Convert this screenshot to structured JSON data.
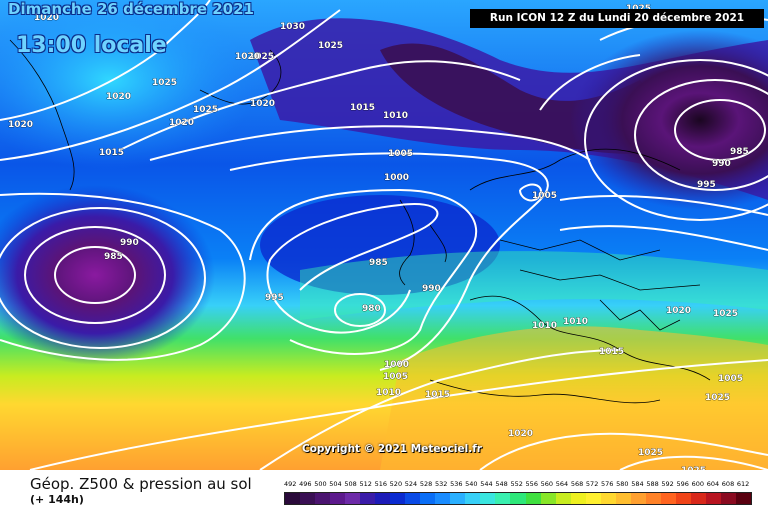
{
  "header": {
    "date": "Dimanche 26 décembre 2021",
    "time": "13:00 locale",
    "run": "Run ICON 12 Z du Lundi 20 décembre 2021"
  },
  "copyright": "Copyright © 2021 Meteociel.fr",
  "footer": {
    "title": "Géop. Z500 & pression au sol",
    "subtitle": "(+ 144h)"
  },
  "legend": {
    "values": [
      "492",
      "496",
      "500",
      "504",
      "508",
      "512",
      "516",
      "520",
      "524",
      "528",
      "532",
      "536",
      "540",
      "544",
      "548",
      "552",
      "556",
      "560",
      "564",
      "568",
      "572",
      "576",
      "580",
      "584",
      "588",
      "592",
      "596",
      "600",
      "604",
      "608",
      "612"
    ],
    "colors": [
      "#2a0a3a",
      "#3a0f54",
      "#4b1470",
      "#5c198c",
      "#6d2aa8",
      "#3a1ba8",
      "#1d1bb8",
      "#0a2ad0",
      "#0a4ae6",
      "#0a6ef6",
      "#1a8cff",
      "#2ab0ff",
      "#38d0f8",
      "#3ae6e0",
      "#3af0b0",
      "#2ee87a",
      "#40e040",
      "#88e628",
      "#c8ec20",
      "#eef020",
      "#fff030",
      "#ffd830",
      "#ffbe30",
      "#ffa030",
      "#ff8228",
      "#ff6420",
      "#f04418",
      "#d8281a",
      "#b81420",
      "#8a0a20",
      "#5a0010"
    ]
  },
  "pressure_labels": [
    "1020",
    "1020",
    "1025",
    "1020",
    "1015",
    "1025",
    "1020",
    "1025",
    "1020",
    "1030",
    "1025",
    "1020",
    "1015",
    "1010",
    "1005",
    "1000",
    "1005",
    "990",
    "985",
    "995",
    "985",
    "980",
    "990",
    "1000",
    "1005",
    "1010",
    "1015",
    "1010",
    "1010",
    "1015",
    "1020",
    "1020",
    "1025",
    "1025",
    "1025",
    "1025",
    "1005",
    "985",
    "990",
    "995",
    "1025"
  ]
}
